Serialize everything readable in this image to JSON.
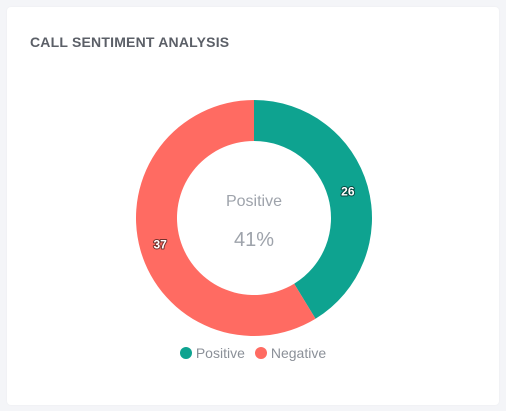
{
  "card": {
    "title": "CALL SENTIMENT ANALYSIS"
  },
  "chart_data": {
    "type": "pie",
    "variant": "donut",
    "categories": [
      "Positive",
      "Negative"
    ],
    "values": [
      26,
      37
    ],
    "colors": [
      "#0ea390",
      "#ff6b62"
    ],
    "center_label": "Positive",
    "center_value": "41%",
    "legend": {
      "position": "bottom",
      "items": [
        "Positive",
        "Negative"
      ]
    },
    "title": "CALL SENTIMENT ANALYSIS"
  }
}
